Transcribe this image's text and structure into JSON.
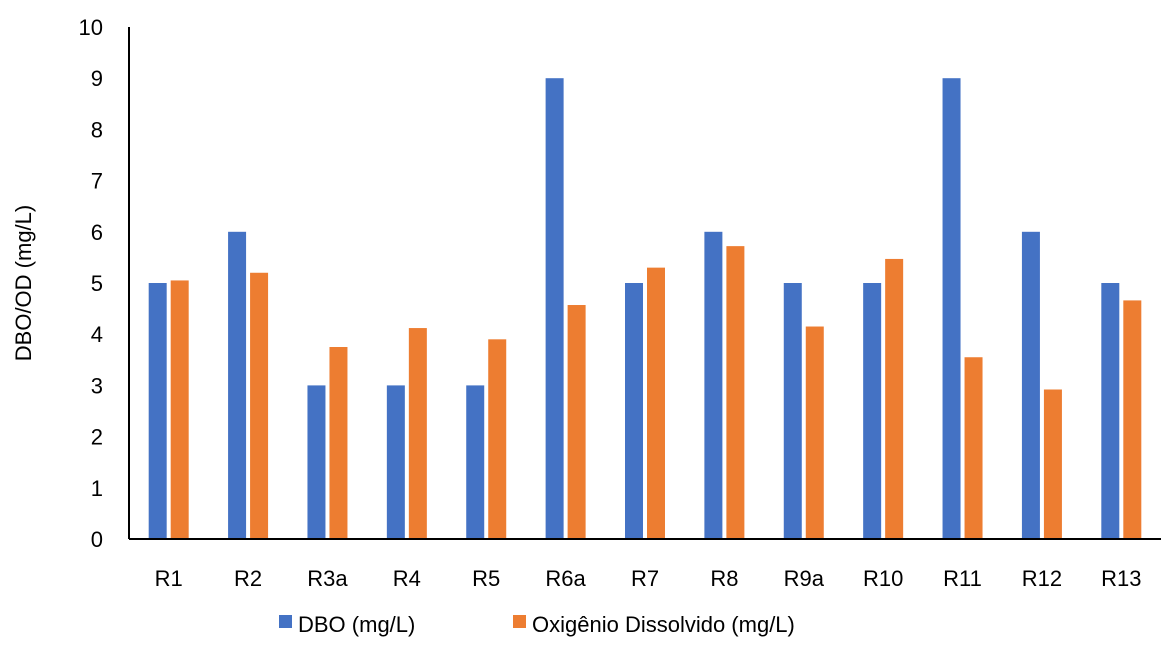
{
  "chart_data": {
    "type": "bar",
    "title": "",
    "xlabel": "",
    "ylabel": "DBO/OD (mg/L)",
    "ylim": [
      0,
      10
    ],
    "yticks": [
      0,
      1,
      2,
      3,
      4,
      5,
      6,
      7,
      8,
      9,
      10
    ],
    "grid": false,
    "legend_position": "bottom",
    "categories": [
      "R1",
      "R2",
      "R3a",
      "R4",
      "R5",
      "R6a",
      "R7",
      "R8",
      "R9a",
      "R10",
      "R11",
      "R12",
      "R13"
    ],
    "series": [
      {
        "name": "DBO (mg/L)",
        "color": "#4472C4",
        "values": [
          5,
          6,
          3,
          3,
          3,
          9,
          5,
          6,
          5,
          5,
          9,
          6,
          5
        ]
      },
      {
        "name": "Oxigênio Dissolvido (mg/L)",
        "color": "#ED7D31",
        "values": [
          5.05,
          5.2,
          3.75,
          4.12,
          3.9,
          4.57,
          5.3,
          5.72,
          4.15,
          5.47,
          3.55,
          2.92,
          4.66
        ]
      }
    ]
  }
}
